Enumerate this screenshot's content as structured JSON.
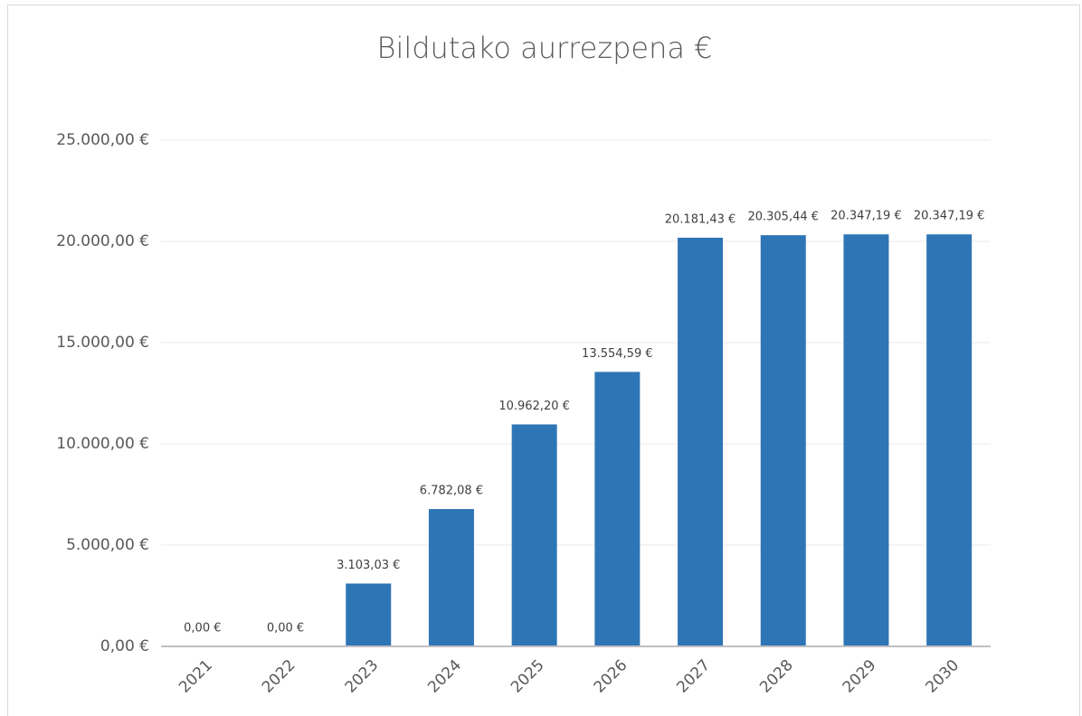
{
  "chart_data": {
    "type": "bar",
    "title": "Bildutako aurrezpena €",
    "categories": [
      "2021",
      "2022",
      "2023",
      "2024",
      "2025",
      "2026",
      "2027",
      "2028",
      "2029",
      "2030"
    ],
    "values": [
      0,
      0,
      3103.03,
      6782.08,
      10962.2,
      13554.59,
      20181.43,
      20305.44,
      20347.19,
      20347.19
    ],
    "value_labels": [
      "0,00 €",
      "0,00 €",
      "3.103,03 €",
      "6.782,08 €",
      "10.962,20 €",
      "13.554,59 €",
      "20.181,43 €",
      "20.305,44 €",
      "20.347,19 €",
      "20.347,19 €"
    ],
    "color": "#2e75b6",
    "ylim": [
      0,
      25000
    ],
    "yticks": [
      {
        "value": 0,
        "label": "0,00 €"
      },
      {
        "value": 5000,
        "label": "5.000,00 €"
      },
      {
        "value": 10000,
        "label": "10.000,00 €"
      },
      {
        "value": 15000,
        "label": "15.000,00 €"
      },
      {
        "value": 20000,
        "label": "20.000,00 €"
      },
      {
        "value": 25000,
        "label": "25.000,00 €"
      }
    ],
    "grid": true
  }
}
